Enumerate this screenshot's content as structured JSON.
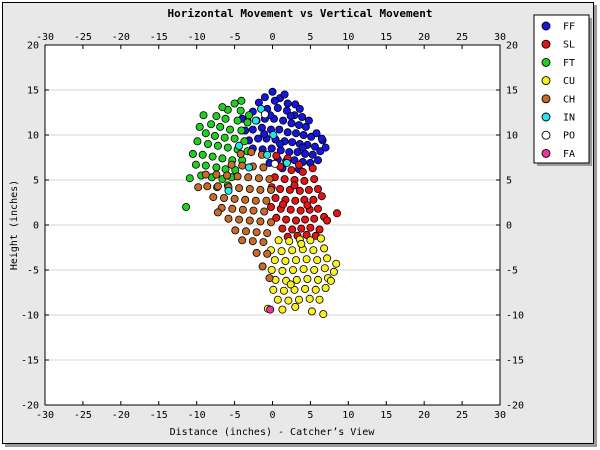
{
  "chart_data": {
    "type": "scatter",
    "title": "Horizontal Movement vs Vertical Movement",
    "xlabel": "Distance (inches) - Catcher’s View",
    "ylabel": "Height (inches)",
    "xlim": [
      -30,
      30
    ],
    "ylim": [
      -20,
      20
    ],
    "xticks": [
      -30,
      -25,
      -20,
      -15,
      -10,
      -5,
      0,
      5,
      10,
      15,
      20,
      25,
      30
    ],
    "yticks": [
      20,
      15,
      10,
      5,
      0,
      -5,
      -10,
      -15,
      -20
    ],
    "grid": true,
    "legend_position": "right",
    "series": [
      {
        "name": "FF",
        "color": "#1515dd",
        "values": [
          [
            -1.8,
            13.6
          ],
          [
            -1,
            14.2
          ],
          [
            0,
            14.8
          ],
          [
            1,
            14.1
          ],
          [
            2,
            13.5
          ],
          [
            3,
            13.4
          ],
          [
            -2.6,
            12.6
          ],
          [
            -0.7,
            12.9
          ],
          [
            0.7,
            13
          ],
          [
            1.9,
            12.7
          ],
          [
            2.9,
            12.2
          ],
          [
            3.9,
            12
          ],
          [
            -3.3,
            11.6
          ],
          [
            -2.1,
            11.6
          ],
          [
            -1,
            11.8
          ],
          [
            0.2,
            11.8
          ],
          [
            1.4,
            11.6
          ],
          [
            2.5,
            11.3
          ],
          [
            3.5,
            11.1
          ],
          [
            4.4,
            10.9
          ],
          [
            -3.6,
            10.5
          ],
          [
            -2.6,
            10.6
          ],
          [
            -1.4,
            10.8
          ],
          [
            -0.2,
            10.6
          ],
          [
            0.9,
            10.6
          ],
          [
            2,
            10.3
          ],
          [
            3.1,
            10.2
          ],
          [
            4.1,
            10
          ],
          [
            5.1,
            9.8
          ],
          [
            -3.1,
            9.4
          ],
          [
            -1.9,
            9.6
          ],
          [
            -0.8,
            9.6
          ],
          [
            0.4,
            9.5
          ],
          [
            1.6,
            9.3
          ],
          [
            2.6,
            9.2
          ],
          [
            3.6,
            9
          ],
          [
            4.6,
            8.9
          ],
          [
            5.6,
            8.7
          ],
          [
            -2.6,
            8.5
          ],
          [
            -1.3,
            8.4
          ],
          [
            -0.1,
            8.5
          ],
          [
            1.1,
            8.3
          ],
          [
            2.2,
            8.1
          ],
          [
            3.3,
            8.1
          ],
          [
            4.3,
            7.9
          ],
          [
            5.3,
            7.8
          ],
          [
            6.3,
            8.2
          ],
          [
            0.7,
            7.3
          ],
          [
            1.8,
            7.1
          ],
          [
            2.9,
            7.2
          ],
          [
            4,
            7
          ],
          [
            5,
            6.9
          ],
          [
            6,
            7.2
          ],
          [
            -0.4,
            6.9
          ],
          [
            1.3,
            6.3
          ],
          [
            3.5,
            6.2
          ],
          [
            7,
            8.6
          ],
          [
            6.6,
            9.4
          ],
          [
            5.8,
            10.2
          ],
          [
            -4,
            11.8
          ],
          [
            1.6,
            14.5
          ],
          [
            3.6,
            12.9
          ],
          [
            0.3,
            13.8
          ],
          [
            -0.3,
            12.2
          ],
          [
            2.4,
            12.1
          ],
          [
            1,
            9
          ],
          [
            4.8,
            11.6
          ],
          [
            -1.1,
            10.1
          ],
          [
            6.5,
            9.6
          ],
          [
            4,
            8.6
          ]
        ]
      },
      {
        "name": "SL",
        "color": "#e41414",
        "values": [
          [
            0.5,
            7.7
          ],
          [
            2,
            7.4
          ],
          [
            3.5,
            6.7
          ],
          [
            1,
            6.5
          ],
          [
            2.5,
            6.1
          ],
          [
            4,
            5.9
          ],
          [
            5.3,
            6.3
          ],
          [
            0.3,
            5.3
          ],
          [
            1.6,
            5.1
          ],
          [
            2.9,
            5
          ],
          [
            4.2,
            4.9
          ],
          [
            5.5,
            5.1
          ],
          [
            -0.1,
            4.2
          ],
          [
            1,
            4
          ],
          [
            2.3,
            3.9
          ],
          [
            3.6,
            3.8
          ],
          [
            4.8,
            3.9
          ],
          [
            6,
            4
          ],
          [
            0.4,
            3
          ],
          [
            1.7,
            2.8
          ],
          [
            3,
            2.7
          ],
          [
            4.2,
            2.8
          ],
          [
            5.4,
            2.8
          ],
          [
            6.5,
            3.2
          ],
          [
            -0.2,
            2
          ],
          [
            1.1,
            1.8
          ],
          [
            2.4,
            1.7
          ],
          [
            3.7,
            1.6
          ],
          [
            4.9,
            1.7
          ],
          [
            6,
            1.8
          ],
          [
            0.5,
            0.8
          ],
          [
            1.8,
            0.6
          ],
          [
            3.1,
            0.5
          ],
          [
            4.3,
            0.6
          ],
          [
            5.5,
            0.7
          ],
          [
            6.8,
            0.9
          ],
          [
            1.3,
            -0.4
          ],
          [
            2.6,
            -0.5
          ],
          [
            3.8,
            -0.4
          ],
          [
            5,
            -0.3
          ],
          [
            6.2,
            -0.5
          ],
          [
            2,
            -1.3
          ],
          [
            3.3,
            -1.2
          ],
          [
            4.5,
            -1.1
          ],
          [
            5.7,
            -1.2
          ],
          [
            7.2,
            0.5
          ],
          [
            8.5,
            1.3
          ],
          [
            2.9,
            4.4
          ],
          [
            1.4,
            2.3
          ],
          [
            4.6,
            2.2
          ]
        ]
      },
      {
        "name": "FT",
        "color": "#20d020",
        "values": [
          [
            -5,
            13.5
          ],
          [
            -5.9,
            12.8
          ],
          [
            -4.2,
            12.7
          ],
          [
            -7.4,
            12.1
          ],
          [
            -6.2,
            11.8
          ],
          [
            -4.6,
            11.6
          ],
          [
            -3.3,
            11.4
          ],
          [
            -8.1,
            11.2
          ],
          [
            -6.9,
            10.9
          ],
          [
            -5.6,
            10.6
          ],
          [
            -4.1,
            10.5
          ],
          [
            -9.6,
            10.9
          ],
          [
            -8.8,
            10.2
          ],
          [
            -7.6,
            9.9
          ],
          [
            -6.3,
            9.7
          ],
          [
            -5,
            9.6
          ],
          [
            -3.7,
            9.3
          ],
          [
            -9.9,
            9.3
          ],
          [
            -8.5,
            9
          ],
          [
            -7.2,
            8.8
          ],
          [
            -5.9,
            8.6
          ],
          [
            -4.6,
            8.4
          ],
          [
            -3.3,
            8.2
          ],
          [
            -10.5,
            7.9
          ],
          [
            -9.2,
            7.8
          ],
          [
            -7.9,
            7.6
          ],
          [
            -6.6,
            7.4
          ],
          [
            -5.3,
            7.2
          ],
          [
            -4,
            7.2
          ],
          [
            -10.1,
            6.7
          ],
          [
            -8.8,
            6.6
          ],
          [
            -7.4,
            6.4
          ],
          [
            -6.2,
            6.2
          ],
          [
            -4.9,
            6.1
          ],
          [
            -9.4,
            5.5
          ],
          [
            -8,
            5.3
          ],
          [
            -6.6,
            5.1
          ],
          [
            -5.4,
            5.3
          ],
          [
            -10.9,
            5.2
          ],
          [
            -7.3,
            4.2
          ],
          [
            -5.9,
            4.4
          ],
          [
            -11.4,
            2.0
          ],
          [
            -9.1,
            12.2
          ],
          [
            -4.1,
            13.8
          ],
          [
            -3.1,
            12.2
          ],
          [
            -6.6,
            13.1
          ]
        ]
      },
      {
        "name": "CU",
        "color": "#f8f020",
        "values": [
          [
            0.8,
            -1.7
          ],
          [
            2.2,
            -1.8
          ],
          [
            3.6,
            -1.6
          ],
          [
            5,
            -1.7
          ],
          [
            6.4,
            -1.5
          ],
          [
            -0.2,
            -2.8
          ],
          [
            1.2,
            -2.9
          ],
          [
            2.6,
            -2.8
          ],
          [
            4,
            -2.7
          ],
          [
            5.4,
            -2.8
          ],
          [
            6.8,
            -2.6
          ],
          [
            0.3,
            -3.9
          ],
          [
            1.7,
            -4
          ],
          [
            3.1,
            -3.9
          ],
          [
            4.5,
            -3.8
          ],
          [
            5.9,
            -3.9
          ],
          [
            7.2,
            -3.7
          ],
          [
            -0.1,
            -5
          ],
          [
            1.3,
            -5.1
          ],
          [
            2.7,
            -5
          ],
          [
            4.1,
            -4.9
          ],
          [
            5.5,
            -5
          ],
          [
            6.9,
            -4.8
          ],
          [
            8.1,
            -5.2
          ],
          [
            0.4,
            -6.1
          ],
          [
            1.8,
            -6.2
          ],
          [
            3.2,
            -6.1
          ],
          [
            4.6,
            -6
          ],
          [
            6,
            -6.1
          ],
          [
            7.3,
            -5.9
          ],
          [
            0.1,
            -7.2
          ],
          [
            1.5,
            -7.3
          ],
          [
            2.9,
            -7.2
          ],
          [
            4.3,
            -7.1
          ],
          [
            5.7,
            -7.2
          ],
          [
            7,
            -7
          ],
          [
            0.7,
            -8.3
          ],
          [
            2.1,
            -8.4
          ],
          [
            3.5,
            -8.3
          ],
          [
            4.9,
            -8.2
          ],
          [
            6.2,
            -8.3
          ],
          [
            1.3,
            -9.4
          ],
          [
            3,
            -9.1
          ],
          [
            5.2,
            -9.6
          ],
          [
            6.7,
            -9.9
          ],
          [
            -0.6,
            -9.3
          ],
          [
            7.7,
            -6.2
          ],
          [
            8.4,
            -4.3
          ],
          [
            3.8,
            -2.1
          ],
          [
            2.4,
            -6.6
          ]
        ]
      },
      {
        "name": "CH",
        "color": "#c86a2a",
        "values": [
          [
            -4.2,
            7.9
          ],
          [
            -2.8,
            8.1
          ],
          [
            -1.4,
            7.8
          ],
          [
            -5.4,
            6.7
          ],
          [
            -4,
            6.6
          ],
          [
            -2.6,
            6.5
          ],
          [
            -1.2,
            6.4
          ],
          [
            -7.4,
            5.6
          ],
          [
            -6,
            5.5
          ],
          [
            -4.6,
            5.4
          ],
          [
            -3.2,
            5.3
          ],
          [
            -1.8,
            5.2
          ],
          [
            -0.4,
            5.1
          ],
          [
            -8.6,
            4.3
          ],
          [
            -7.2,
            4.3
          ],
          [
            -5.8,
            4.2
          ],
          [
            -4.4,
            4.1
          ],
          [
            -3,
            4
          ],
          [
            -1.6,
            3.9
          ],
          [
            -0.2,
            3.9
          ],
          [
            -7.8,
            3.1
          ],
          [
            -6.4,
            3
          ],
          [
            -5,
            2.9
          ],
          [
            -3.6,
            2.8
          ],
          [
            -2.2,
            2.7
          ],
          [
            -0.8,
            2.7
          ],
          [
            -6.7,
            1.9
          ],
          [
            -5.3,
            1.8
          ],
          [
            -3.9,
            1.7
          ],
          [
            -2.5,
            1.6
          ],
          [
            -1.1,
            1.5
          ],
          [
            -7.2,
            1.4
          ],
          [
            -5.8,
            0.7
          ],
          [
            -4.4,
            0.6
          ],
          [
            -3,
            0.5
          ],
          [
            -1.6,
            0.4
          ],
          [
            -0.2,
            0.3
          ],
          [
            -4.9,
            -0.6
          ],
          [
            -3.5,
            -0.7
          ],
          [
            -2.1,
            -0.8
          ],
          [
            -0.7,
            -0.9
          ],
          [
            -4,
            -1.7
          ],
          [
            -2.6,
            -1.8
          ],
          [
            -1.2,
            -1.9
          ],
          [
            -2.1,
            -3.1
          ],
          [
            -0.7,
            -3.2
          ],
          [
            -1.3,
            -4.6
          ],
          [
            -0.4,
            -5.9
          ],
          [
            -9.8,
            4.2
          ],
          [
            -8.8,
            5.6
          ]
        ]
      },
      {
        "name": "IN",
        "color": "#20e8e8",
        "values": [
          [
            -4.4,
            8.8
          ],
          [
            -2.2,
            11.6
          ],
          [
            0.1,
            10
          ],
          [
            -5.8,
            3.8
          ],
          [
            -0.7,
            7.8
          ],
          [
            1.9,
            6.9
          ],
          [
            -1.5,
            12.9
          ],
          [
            -3.1,
            6.4
          ]
        ]
      },
      {
        "name": "PO",
        "color": "#ffffff",
        "values": [
          [
            -1,
            12.3
          ],
          [
            0.3,
            6.8
          ]
        ]
      },
      {
        "name": "FA",
        "color": "#ee3399",
        "values": [
          [
            -0.3,
            -9.4
          ]
        ]
      }
    ]
  }
}
